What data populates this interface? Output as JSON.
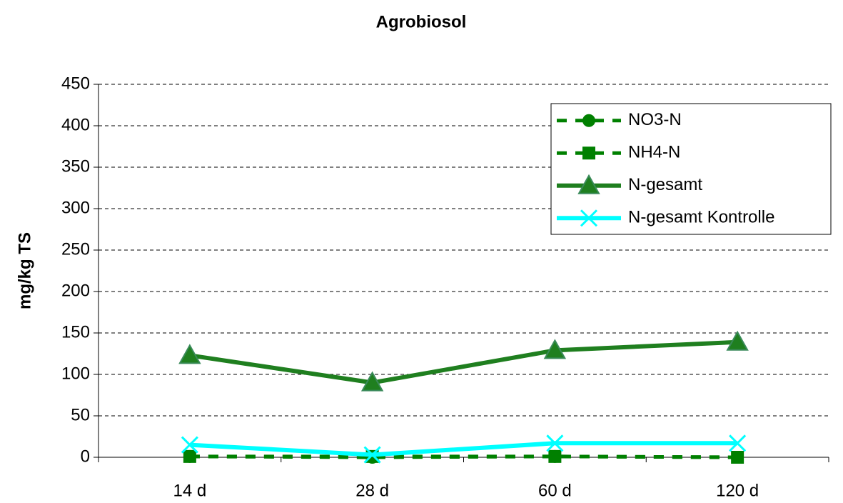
{
  "chart_data": {
    "type": "line",
    "title": "Agrobiosol",
    "y_label": "mg/kg TS",
    "categories": [
      "14 d",
      "28 d",
      "60 d",
      "120 d"
    ],
    "series": [
      {
        "name": "NO3-N",
        "color": "#008000",
        "dashed": true,
        "marker": "circle",
        "values": [
          1,
          0,
          1,
          0
        ]
      },
      {
        "name": "NH4-N",
        "color": "#008000",
        "dashed": true,
        "marker": "square",
        "values": [
          1,
          1,
          1,
          0
        ]
      },
      {
        "name": "N-gesamt",
        "color": "#1f7f1f",
        "dashed": false,
        "marker": "triangle",
        "values": [
          123,
          90,
          129,
          139
        ]
      },
      {
        "name": "N-gesamt Kontrolle",
        "color": "#00ffff",
        "dashed": false,
        "marker": "x",
        "values": [
          15,
          3,
          17,
          17
        ]
      }
    ],
    "ylim": [
      0,
      450
    ],
    "yticks": [
      0,
      50,
      100,
      150,
      200,
      250,
      300,
      350,
      400,
      450
    ],
    "grid": true,
    "legend": "upper right"
  }
}
